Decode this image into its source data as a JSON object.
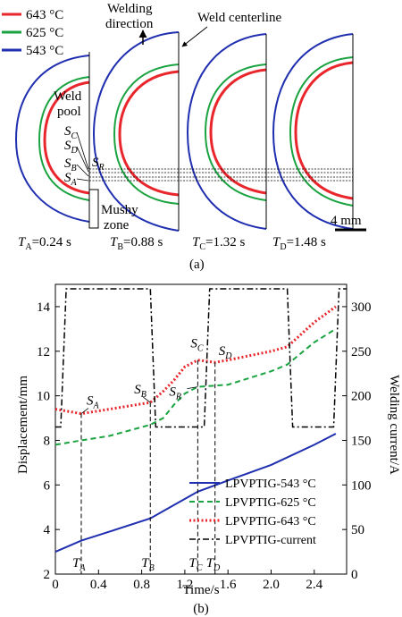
{
  "panel_a": {
    "legend": [
      {
        "label": "643 °C",
        "color": "#e8262c"
      },
      {
        "label": "625 °C",
        "color": "#1aa340"
      },
      {
        "label": "543 °C",
        "color": "#1f2fb0"
      }
    ],
    "annotations": {
      "welding_direction_1": "Welding",
      "welding_direction_2": "direction",
      "weld_centerline": "Weld centerline",
      "weld_pool_1": "Weld",
      "weld_pool_2": "pool",
      "mushy_1": "Mushy",
      "mushy_2": "zone",
      "scale": "4 mm"
    },
    "point_labels": {
      "sc": "C",
      "sd": "D",
      "sb": "B",
      "sa": "A",
      "sr": "R"
    },
    "time_labels": [
      {
        "sub": "A",
        "value": "=0.24 s"
      },
      {
        "sub": "B",
        "value": "=0.88 s"
      },
      {
        "sub": "C",
        "value": "=1.32 s"
      },
      {
        "sub": "D",
        "value": "=1.48 s"
      }
    ],
    "caption": "(a)"
  },
  "panel_b": {
    "caption": "(b)",
    "letters": {
      "S": "S",
      "T": "T"
    },
    "point_labels": {
      "A": "A",
      "B": "B",
      "C": "C",
      "D": "D",
      "R": "R"
    },
    "time_markers": {
      "A": "A",
      "B": "B",
      "C": "C",
      "D": "D"
    },
    "colors": {
      "543": "#1f2fb0",
      "625": "#1aa340",
      "643": "#e8262c",
      "current": "#000000"
    }
  },
  "chart_data": {
    "type": "line",
    "xlabel": "Time/s",
    "ylabel": "Displacement/mm",
    "y2label": "Welding current/A",
    "xlim": [
      0,
      2.7
    ],
    "ylim": [
      2,
      15
    ],
    "y2lim": [
      0,
      325
    ],
    "xticks": [
      "0",
      "0.4",
      "0.8",
      "1.2",
      "1.6",
      "2.0",
      "2.4"
    ],
    "yticks": [
      "2",
      "4",
      "6",
      "8",
      "10",
      "12",
      "14"
    ],
    "y2ticks": [
      "0",
      "50",
      "100",
      "150",
      "200",
      "250",
      "300"
    ],
    "series": [
      {
        "name": "LPVPTIG-543 °C",
        "axis": "left",
        "style": "solid",
        "x": [
          0,
          0.24,
          0.5,
          0.88,
          1.1,
          1.32,
          1.6,
          2.0,
          2.4,
          2.6
        ],
        "y": [
          3.0,
          3.5,
          3.9,
          4.5,
          5.1,
          5.7,
          6.2,
          6.9,
          7.8,
          8.3
        ]
      },
      {
        "name": "LPVPTIG-625 °C",
        "axis": "left",
        "style": "dashed",
        "x": [
          0,
          0.24,
          0.5,
          0.88,
          1.0,
          1.1,
          1.2,
          1.32,
          1.6,
          2.0,
          2.15,
          2.4,
          2.6
        ],
        "y": [
          7.8,
          8.0,
          8.2,
          8.7,
          9.0,
          9.6,
          10.1,
          10.4,
          10.5,
          11.1,
          11.4,
          12.4,
          13.0
        ]
      },
      {
        "name": "LPVPTIG-643 °C",
        "axis": "left",
        "style": "dotted",
        "x": [
          0,
          0.24,
          0.5,
          0.88,
          1.0,
          1.1,
          1.2,
          1.32,
          1.48,
          1.6,
          2.0,
          2.15,
          2.4,
          2.6
        ],
        "y": [
          9.4,
          9.2,
          9.4,
          9.7,
          10.2,
          10.7,
          11.3,
          11.6,
          11.5,
          11.6,
          12.0,
          12.2,
          13.3,
          14.0
        ]
      },
      {
        "name": "LPVPTIG-current",
        "axis": "right",
        "style": "dashdot",
        "x": [
          0,
          0.05,
          0.1,
          0.88,
          0.93,
          1.38,
          1.43,
          2.15,
          2.2,
          2.58,
          2.63,
          2.7
        ],
        "y": [
          165,
          165,
          320,
          320,
          165,
          165,
          320,
          320,
          165,
          165,
          320,
          320
        ]
      }
    ],
    "markers": [
      {
        "label": "A",
        "t": 0.24
      },
      {
        "label": "B",
        "t": 0.88
      },
      {
        "label": "C",
        "t": 1.32
      },
      {
        "label": "D",
        "t": 1.48
      }
    ],
    "legend_position": "bottom-right"
  }
}
